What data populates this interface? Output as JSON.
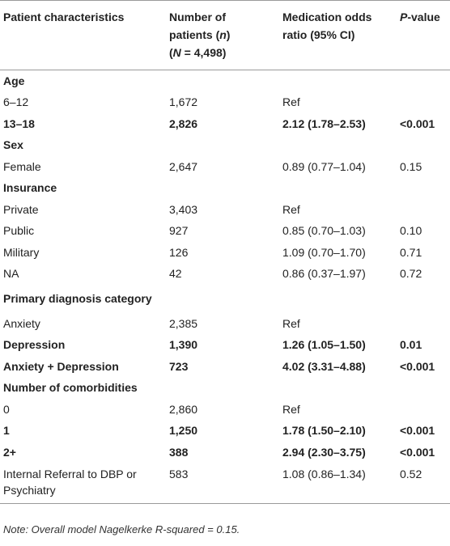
{
  "header": {
    "col1": "Patient characteristics",
    "col2_line1": "Number of",
    "col2_line2_pre": "patients (",
    "col2_line2_italic": "n",
    "col2_line2_post": ")",
    "col2_line3_pre": "(",
    "col2_line3_italic": "N",
    "col2_line3_post": " = 4,498)",
    "col3_line1": "Medication odds",
    "col3_line2": "ratio (95% CI)",
    "col4_italic": "P",
    "col4_post": "-value"
  },
  "rows": [
    {
      "type": "section",
      "label": "Age"
    },
    {
      "type": "data",
      "label": "6–12",
      "n": "1,672",
      "or": "Ref",
      "p": "",
      "bold": false
    },
    {
      "type": "data",
      "label": "13–18",
      "n": "2,826",
      "or": "2.12 (1.78–2.53)",
      "p": "<0.001",
      "bold": true
    },
    {
      "type": "section",
      "label": "Sex"
    },
    {
      "type": "data",
      "label": "Female",
      "n": "2,647",
      "or": "0.89 (0.77–1.04)",
      "p": "0.15",
      "bold": false
    },
    {
      "type": "section",
      "label": "Insurance"
    },
    {
      "type": "data",
      "label": "Private",
      "n": "3,403",
      "or": "Ref",
      "p": "",
      "bold": false
    },
    {
      "type": "data",
      "label": "Public",
      "n": "927",
      "or": "0.85 (0.70–1.03)",
      "p": "0.10",
      "bold": false
    },
    {
      "type": "data",
      "label": "Military",
      "n": "126",
      "or": "1.09 (0.70–1.70)",
      "p": "0.71",
      "bold": false
    },
    {
      "type": "data",
      "label": "NA",
      "n": "42",
      "or": "0.86 (0.37–1.97)",
      "p": "0.72",
      "bold": false
    },
    {
      "type": "section",
      "label": "Primary diagnosis category",
      "tall": true
    },
    {
      "type": "data",
      "label": "Anxiety",
      "n": "2,385",
      "or": "Ref",
      "p": "",
      "bold": false
    },
    {
      "type": "data",
      "label": "Depression",
      "n": "1,390",
      "or": "1.26 (1.05–1.50)",
      "p": "0.01",
      "bold": true
    },
    {
      "type": "data",
      "label": "Anxiety + Depression",
      "n": "723",
      "or": "4.02 (3.31–4.88)",
      "p": "<0.001",
      "bold": true
    },
    {
      "type": "section",
      "label": "Number of comorbidities"
    },
    {
      "type": "data",
      "label": "0",
      "n": "2,860",
      "or": "Ref",
      "p": "",
      "bold": false
    },
    {
      "type": "data",
      "label": "1",
      "n": "1,250",
      "or": "1.78 (1.50–2.10)",
      "p": "<0.001",
      "bold": true
    },
    {
      "type": "data",
      "label": "2+",
      "n": "388",
      "or": "2.94 (2.30–3.75)",
      "p": "<0.001",
      "bold": true
    },
    {
      "type": "data",
      "label": "Internal Referral to DBP or Psychiatry",
      "n": "583",
      "or": "1.08 (0.86–1.34)",
      "p": "0.52",
      "bold": false,
      "tall2": true
    }
  ],
  "note": "Note: Overall model Nagelkerke R-squared = 0.15."
}
